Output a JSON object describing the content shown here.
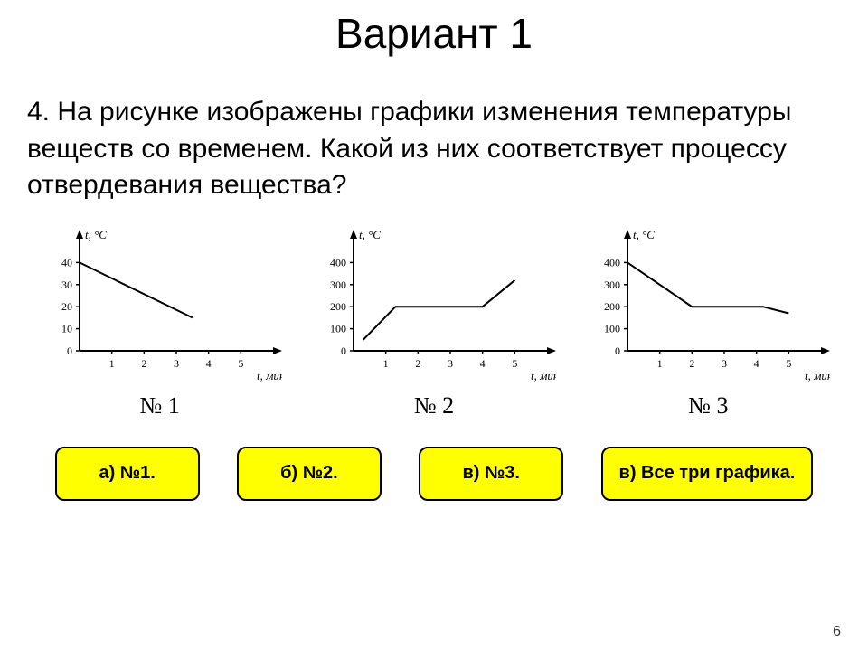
{
  "title": "Вариант 1",
  "question": "4. На рисунке изображены графики изменения температуры веществ со временем. Какой из них соответствует процессу отвердевания вещества?",
  "page_number": "6",
  "charts": [
    {
      "label": "№ 1",
      "y_axis_label": "t, °C",
      "x_axis_label": "t, мин",
      "y_ticks": [
        0,
        10,
        20,
        30,
        40
      ],
      "x_ticks": [
        1,
        2,
        3,
        4,
        5
      ],
      "xlim": [
        0,
        6
      ],
      "ylim": [
        0,
        50
      ],
      "series": [
        {
          "points": [
            [
              0,
              40
            ],
            [
              3.5,
              15
            ]
          ]
        }
      ],
      "axis_color": "#000000",
      "line_color": "#000000",
      "tick_fontsize": 12,
      "axlabel_fontsize": 13,
      "line_width": 2
    },
    {
      "label": "№ 2",
      "y_axis_label": "t, °C",
      "x_axis_label": "t, мин",
      "y_ticks": [
        0,
        100,
        200,
        300,
        400
      ],
      "x_ticks": [
        1,
        2,
        3,
        4,
        5
      ],
      "xlim": [
        0,
        6
      ],
      "ylim": [
        0,
        500
      ],
      "series": [
        {
          "points": [
            [
              0.3,
              50
            ],
            [
              1.3,
              200
            ],
            [
              4,
              200
            ],
            [
              5,
              320
            ]
          ]
        }
      ],
      "axis_color": "#000000",
      "line_color": "#000000",
      "tick_fontsize": 12,
      "axlabel_fontsize": 13,
      "line_width": 2
    },
    {
      "label": "№ 3",
      "y_axis_label": "t, °C",
      "x_axis_label": "t, мин",
      "y_ticks": [
        0,
        100,
        200,
        300,
        400
      ],
      "x_ticks": [
        1,
        2,
        3,
        4,
        5
      ],
      "xlim": [
        0,
        6
      ],
      "ylim": [
        0,
        500
      ],
      "series": [
        {
          "points": [
            [
              0,
              400
            ],
            [
              2,
              200
            ],
            [
              4.2,
              200
            ],
            [
              5,
              170
            ]
          ]
        }
      ],
      "axis_color": "#000000",
      "line_color": "#000000",
      "tick_fontsize": 12,
      "axlabel_fontsize": 13,
      "line_width": 2
    }
  ],
  "answers": [
    {
      "label": "а) №1."
    },
    {
      "label": "б) №2."
    },
    {
      "label": "в) №3."
    },
    {
      "label": "в) Все три графика."
    }
  ],
  "style": {
    "btn_bg": "#ffff00",
    "btn_border": "#000000",
    "btn_radius": 10
  }
}
